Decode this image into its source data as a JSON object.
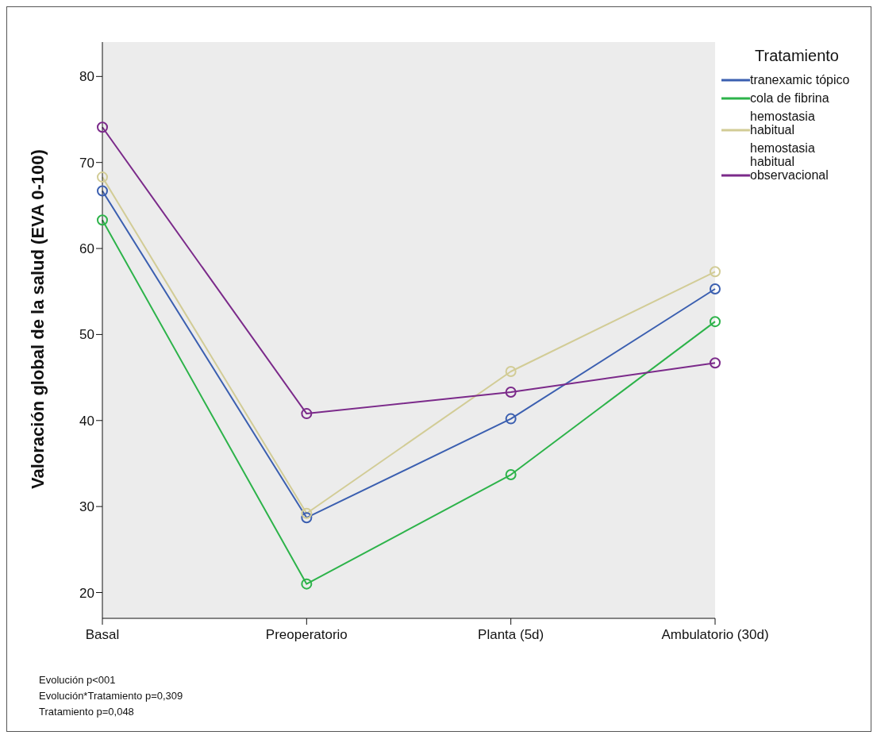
{
  "chart_data": {
    "type": "line",
    "xlabel": null,
    "ylabel": "Valoración global de la salud (EVA 0-100)",
    "legend_title": "Tratamiento",
    "categories": [
      "Basal",
      "Preoperatorio",
      "Planta (5d)",
      "Ambulatorio (30d)"
    ],
    "series": [
      {
        "name": "tranexamic tópico",
        "color": "#3b5fb0",
        "values": [
          66.7,
          28.7,
          40.2,
          55.3
        ]
      },
      {
        "name": "cola de fibrina",
        "color": "#2db34a",
        "values": [
          63.3,
          21.0,
          33.7,
          51.5
        ]
      },
      {
        "name": "hemostasia habitual",
        "color": "#d2cc96",
        "values": [
          68.3,
          29.2,
          45.7,
          57.3
        ]
      },
      {
        "name": "hemostasia habitual observacional",
        "color": "#7b2a8a",
        "values": [
          74.1,
          40.8,
          43.3,
          46.7
        ]
      }
    ],
    "ylim": [
      17,
      84
    ],
    "yticks": [
      20,
      30,
      40,
      50,
      60,
      70,
      80
    ],
    "grid": false,
    "legend": "top right",
    "marker": "circle",
    "line_style": "solid",
    "annotations": [
      "Evolución p<001",
      "Evolución*Tratamiento p=0,309",
      "Tratamiento p=0,048"
    ]
  }
}
